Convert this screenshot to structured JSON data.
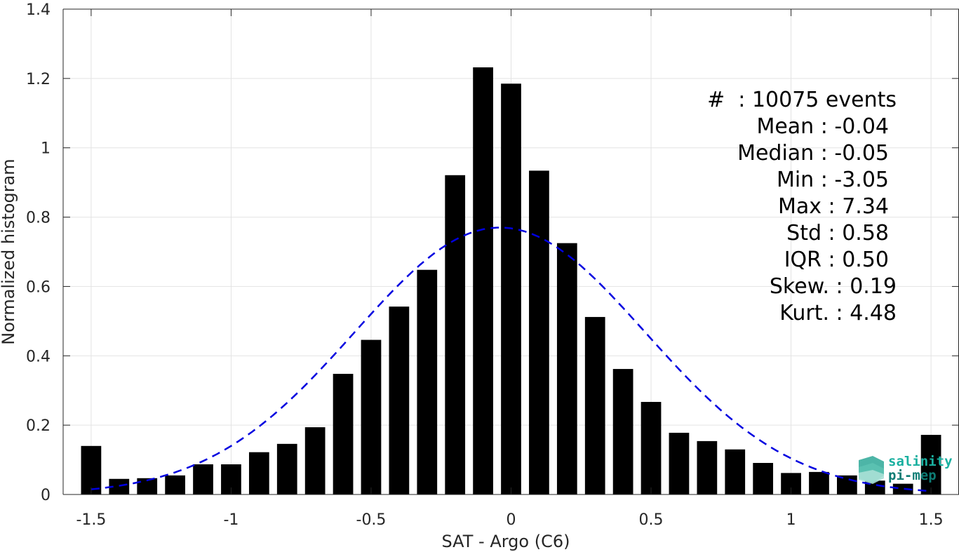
{
  "chart_data": {
    "type": "bar",
    "title": "",
    "xlabel": "SAT - Argo (C6)",
    "ylabel": "Normalized histogram",
    "xlim": [
      -1.6,
      1.6
    ],
    "ylim": [
      0,
      1.4
    ],
    "xticks": [
      -1.5,
      -1,
      -0.5,
      0,
      0.5,
      1,
      1.5
    ],
    "xtick_labels": [
      "-1.5",
      "-1",
      "-0.5",
      "0",
      "0.5",
      "1",
      "1.5"
    ],
    "yticks": [
      0,
      0.2,
      0.4,
      0.6,
      0.8,
      1,
      1.2,
      1.4
    ],
    "ytick_labels": [
      "0",
      "0.2",
      "0.4",
      "0.6",
      "0.8",
      "1",
      "1.2",
      "1.4"
    ],
    "grid": true,
    "bar_color": "#000000",
    "bins": {
      "x": [
        -1.5,
        -1.4,
        -1.3,
        -1.2,
        -1.1,
        -1.0,
        -0.9,
        -0.8,
        -0.7,
        -0.6,
        -0.5,
        -0.4,
        -0.3,
        -0.2,
        -0.1,
        0.0,
        0.1,
        0.2,
        0.3,
        0.4,
        0.5,
        0.6,
        0.7,
        0.8,
        0.9,
        1.0,
        1.1,
        1.2,
        1.3,
        1.4,
        1.5
      ],
      "values": [
        0.14,
        0.045,
        0.047,
        0.055,
        0.087,
        0.087,
        0.122,
        0.146,
        0.194,
        0.348,
        0.446,
        0.542,
        0.648,
        0.921,
        1.232,
        1.185,
        0.934,
        0.725,
        0.512,
        0.362,
        0.267,
        0.178,
        0.154,
        0.13,
        0.091,
        0.062,
        0.065,
        0.055,
        0.04,
        0.031,
        0.172
      ]
    },
    "fit_curve": {
      "type": "gaussian",
      "mean": -0.04,
      "std": 0.52,
      "peak": 0.77,
      "color": "#0000e0",
      "style": "dashed"
    },
    "stats": [
      "#  : 10075 events",
      "Mean : -0.04",
      "Median : -0.05",
      "Min : -3.05",
      "Max : 7.34",
      "Std : 0.58",
      "IQR : 0.50",
      "Skew. : 0.19",
      "Kurt. : 4.48"
    ]
  },
  "logo": {
    "line1": "salinity",
    "line2": "pi-mep",
    "color1": "#1ab0a0",
    "color2": "#0e7c74"
  }
}
